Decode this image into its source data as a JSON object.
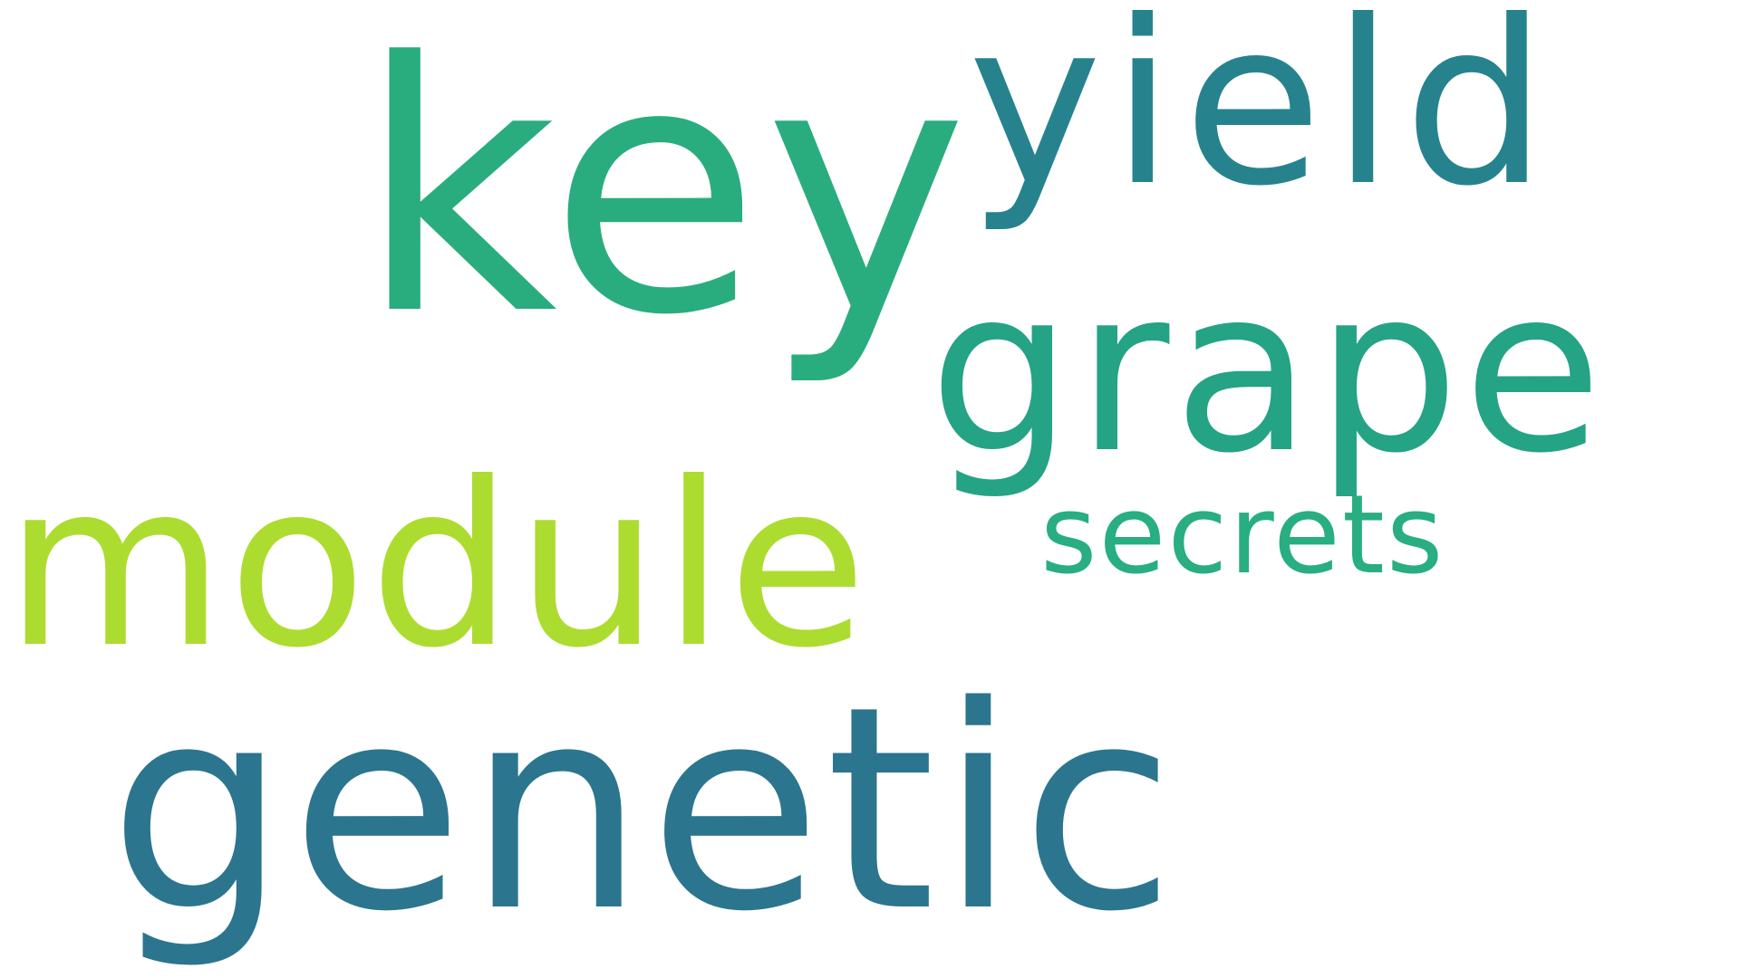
{
  "word_cloud": {
    "words": [
      {
        "key": "genetic",
        "text": "genetic",
        "color": "#2C758E"
      },
      {
        "key": "key",
        "text": "key",
        "color": "#2AAD7E"
      },
      {
        "key": "module",
        "text": "module",
        "color": "#ADDC30"
      },
      {
        "key": "yield",
        "text": "yield",
        "color": "#26838E"
      },
      {
        "key": "grape",
        "text": "grape",
        "color": "#24A385"
      },
      {
        "key": "secrets",
        "text": "secrets",
        "color": "#28AE80"
      }
    ]
  }
}
